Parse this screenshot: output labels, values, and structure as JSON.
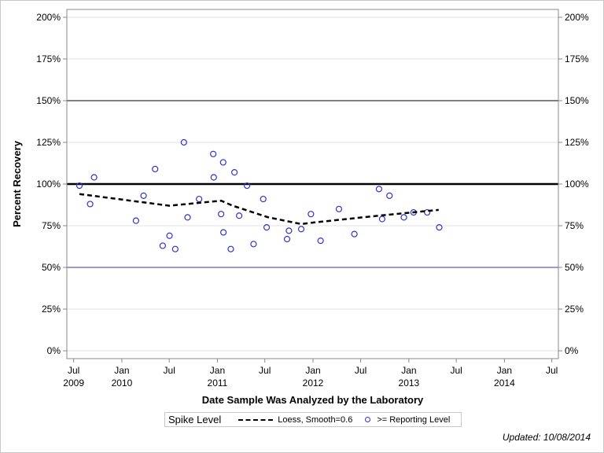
{
  "chart_data": {
    "type": "scatter",
    "xlabel": "Date Sample Was Analyzed by the Laboratory",
    "ylabel": "Percent Recovery",
    "xlim": [
      "2009-06-05",
      "2014-07-26"
    ],
    "ylim": [
      -4.7,
      204.7
    ],
    "y_ticks": [
      "0%",
      "25%",
      "50%",
      "75%",
      "100%",
      "125%",
      "150%",
      "175%",
      "200%"
    ],
    "y_tick_values": [
      0,
      25,
      50,
      75,
      100,
      125,
      150,
      175,
      200
    ],
    "x_ticks": [
      {
        "date": "2009-07-01",
        "label": "Jul",
        "year": "2009"
      },
      {
        "date": "2010-01-01",
        "label": "Jan",
        "year": "2010"
      },
      {
        "date": "2010-07-01",
        "label": "Jul",
        "year": ""
      },
      {
        "date": "2011-01-01",
        "label": "Jan",
        "year": "2011"
      },
      {
        "date": "2011-07-01",
        "label": "Jul",
        "year": ""
      },
      {
        "date": "2012-01-01",
        "label": "Jan",
        "year": "2012"
      },
      {
        "date": "2012-07-01",
        "label": "Jul",
        "year": ""
      },
      {
        "date": "2013-01-01",
        "label": "Jan",
        "year": "2013"
      },
      {
        "date": "2013-07-01",
        "label": "Jul",
        "year": ""
      },
      {
        "date": "2014-01-01",
        "label": "Jan",
        "year": "2014"
      },
      {
        "date": "2014-07-01",
        "label": "Jul",
        "year": ""
      }
    ],
    "grid": true,
    "reference_lines": [
      {
        "value": 150,
        "color": "#000000",
        "width": "thin"
      },
      {
        "value": 100,
        "color": "#000000",
        "width": "thick"
      },
      {
        "value": 50,
        "color": "#3333cc",
        "width": "thin"
      }
    ],
    "series": [
      {
        "name": ">= Reporting Level",
        "type": "scatter",
        "color": "#3333cc",
        "points": [
          [
            "2009-07-23",
            99
          ],
          [
            "2009-09-02",
            88
          ],
          [
            "2009-09-17",
            104
          ],
          [
            "2010-02-24",
            78
          ],
          [
            "2010-03-25",
            93
          ],
          [
            "2010-05-08",
            109
          ],
          [
            "2010-06-06",
            63
          ],
          [
            "2010-07-02",
            69
          ],
          [
            "2010-07-24",
            61
          ],
          [
            "2010-08-26",
            125
          ],
          [
            "2010-09-09",
            80
          ],
          [
            "2010-10-23",
            91
          ],
          [
            "2010-12-16",
            118
          ],
          [
            "2010-12-18",
            104
          ],
          [
            "2011-01-15",
            82
          ],
          [
            "2011-01-23",
            113
          ],
          [
            "2011-01-24",
            71
          ],
          [
            "2011-02-21",
            61
          ],
          [
            "2011-03-07",
            107
          ],
          [
            "2011-03-25",
            81
          ],
          [
            "2011-04-24",
            99
          ],
          [
            "2011-05-19",
            64
          ],
          [
            "2011-06-25",
            91
          ],
          [
            "2011-07-08",
            74
          ],
          [
            "2011-09-24",
            67
          ],
          [
            "2011-10-01",
            72
          ],
          [
            "2011-11-17",
            73
          ],
          [
            "2011-12-24",
            82
          ],
          [
            "2012-01-30",
            66
          ],
          [
            "2012-04-09",
            85
          ],
          [
            "2012-06-07",
            70
          ],
          [
            "2012-09-09",
            97
          ],
          [
            "2012-09-21",
            79
          ],
          [
            "2012-10-19",
            93
          ],
          [
            "2012-12-13",
            80
          ],
          [
            "2013-01-19",
            83
          ],
          [
            "2013-03-12",
            83
          ],
          [
            "2013-04-27",
            74
          ]
        ]
      },
      {
        "name": "Loess, Smooth=0.6",
        "type": "line",
        "style": "dashed",
        "color": "#000000",
        "points": [
          [
            "2009-07-23",
            94
          ],
          [
            "2010-07-02",
            87
          ],
          [
            "2011-01-15",
            90
          ],
          [
            "2011-02-28",
            87
          ],
          [
            "2011-07-15",
            80
          ],
          [
            "2011-11-17",
            76
          ],
          [
            "2012-01-08",
            77
          ],
          [
            "2012-09-06",
            81
          ],
          [
            "2013-04-25",
            84.5
          ]
        ]
      }
    ]
  },
  "legend": {
    "title": "Spike Level",
    "loess_label": "Loess, Smooth=0.6",
    "points_label": ">= Reporting Level"
  },
  "footer": {
    "updated": "Updated: 10/08/2014"
  }
}
